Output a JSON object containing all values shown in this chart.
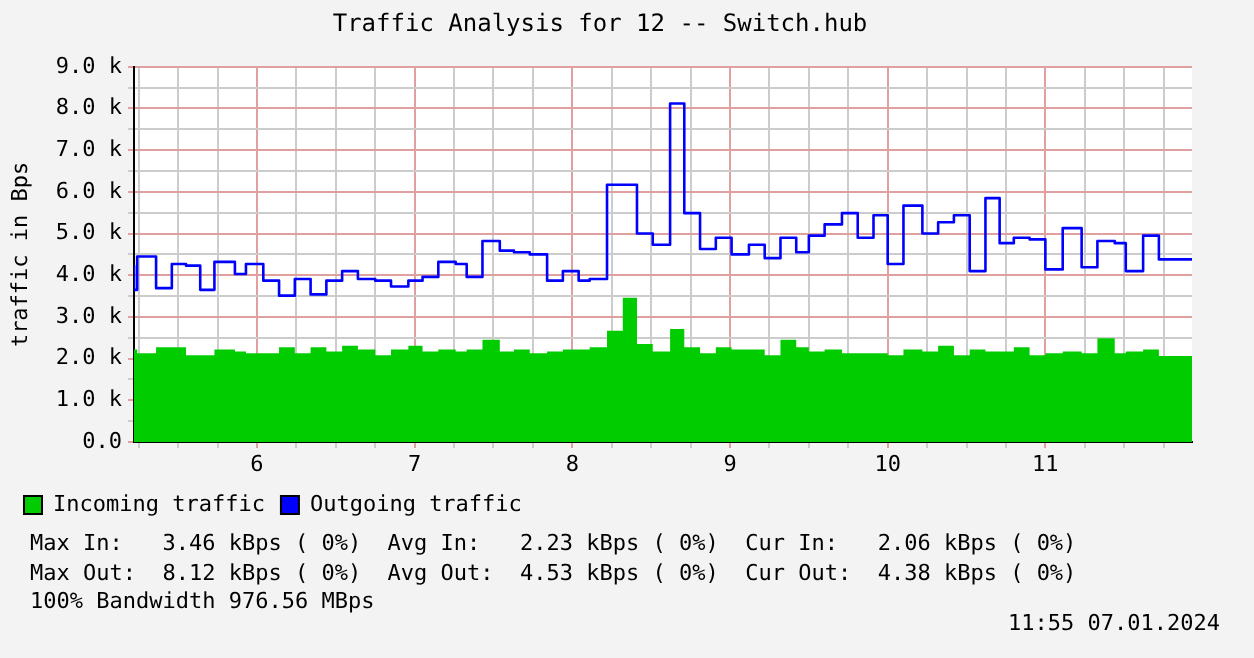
{
  "chart_data": {
    "type": "step",
    "title": "Traffic Analysis for 12 -- Switch.hub",
    "ylabel": "traffic in Bps",
    "xlim": [
      5.22,
      11.93
    ],
    "xticks": [
      {
        "value": 5.25,
        "label": null
      },
      {
        "value": 5.5,
        "label": null
      },
      {
        "value": 5.75,
        "label": null
      },
      6,
      {
        "value": 6.25,
        "label": null
      },
      {
        "value": 6.5,
        "label": null
      },
      {
        "value": 6.75,
        "label": null
      },
      7,
      {
        "value": 7.25,
        "label": null
      },
      {
        "value": 7.5,
        "label": null
      },
      {
        "value": 7.75,
        "label": null
      },
      8,
      {
        "value": 8.25,
        "label": null
      },
      {
        "value": 8.5,
        "label": null
      },
      {
        "value": 8.75,
        "label": null
      },
      9,
      {
        "value": 9.25,
        "label": null
      },
      {
        "value": 9.5,
        "label": null
      },
      {
        "value": 9.75,
        "label": null
      },
      10,
      {
        "value": 10.25,
        "label": null
      },
      {
        "value": 10.5,
        "label": null
      },
      {
        "value": 10.75,
        "label": null
      },
      11,
      {
        "value": 11.25,
        "label": null
      },
      {
        "value": 11.5,
        "label": null
      },
      {
        "value": 11.75,
        "label": null
      }
    ],
    "ylim": [
      0,
      9000
    ],
    "yticks": [
      {
        "value": 0,
        "label": "0.0"
      },
      {
        "value": 500,
        "label": null
      },
      {
        "value": 1000,
        "label": "1.0 k"
      },
      {
        "value": 1500,
        "label": null
      },
      {
        "value": 2000,
        "label": "2.0 k"
      },
      {
        "value": 2500,
        "label": null
      },
      {
        "value": 3000,
        "label": "3.0 k"
      },
      {
        "value": 3500,
        "label": null
      },
      {
        "value": 4000,
        "label": "4.0 k"
      },
      {
        "value": 4500,
        "label": null
      },
      {
        "value": 5000,
        "label": "5.0 k"
      },
      {
        "value": 5500,
        "label": null
      },
      {
        "value": 6000,
        "label": "6.0 k"
      },
      {
        "value": 6500,
        "label": null
      },
      {
        "value": 7000,
        "label": "7.0 k"
      },
      {
        "value": 7500,
        "label": null
      },
      {
        "value": 8000,
        "label": "8.0 k"
      },
      {
        "value": 8500,
        "label": null
      },
      {
        "value": 9000,
        "label": "9.0 k"
      }
    ],
    "grid": true,
    "legend": "bottom left",
    "marker": "none",
    "series": [
      {
        "name": "Incoming traffic",
        "type": "area",
        "color": "#00cc00",
        "x": [
          5.22,
          5.24,
          5.36,
          5.55,
          5.73,
          5.86,
          5.93,
          6.14,
          6.24,
          6.34,
          6.44,
          6.54,
          6.64,
          6.75,
          6.85,
          6.96,
          7.05,
          7.15,
          7.26,
          7.33,
          7.43,
          7.54,
          7.63,
          7.73,
          7.84,
          7.94,
          8.11,
          8.22,
          8.32,
          8.41,
          8.51,
          8.62,
          8.71,
          8.81,
          8.91,
          9.01,
          9.22,
          9.32,
          9.42,
          9.5,
          9.6,
          9.71,
          10.0,
          10.1,
          10.22,
          10.32,
          10.42,
          10.52,
          10.62,
          10.8,
          10.9,
          11.0,
          11.11,
          11.23,
          11.33,
          11.44,
          11.51,
          11.62,
          11.72,
          11.82,
          11.93
        ],
        "values": [
          2130,
          2220,
          2130,
          2270,
          2080,
          2220,
          2170,
          2130,
          2270,
          2130,
          2270,
          2170,
          2310,
          2220,
          2080,
          2220,
          2310,
          2170,
          2220,
          2170,
          2220,
          2450,
          2170,
          2220,
          2130,
          2170,
          2220,
          2270,
          2670,
          3460,
          2350,
          2170,
          2710,
          2270,
          2130,
          2270,
          2220,
          2080,
          2450,
          2270,
          2170,
          2220,
          2130,
          2080,
          2220,
          2170,
          2310,
          2080,
          2220,
          2170,
          2270,
          2080,
          2130,
          2170,
          2130,
          2490,
          2130,
          2170,
          2220,
          2060,
          2060
        ]
      },
      {
        "name": "Outgoing traffic",
        "color": "#0000ff",
        "x": [
          5.22,
          5.24,
          5.36,
          5.46,
          5.55,
          5.64,
          5.73,
          5.86,
          5.93,
          6.04,
          6.14,
          6.24,
          6.34,
          6.44,
          6.54,
          6.64,
          6.75,
          6.85,
          6.96,
          7.05,
          7.15,
          7.26,
          7.33,
          7.43,
          7.54,
          7.63,
          7.73,
          7.84,
          7.94,
          8.04,
          8.11,
          8.22,
          8.41,
          8.51,
          8.62,
          8.71,
          8.81,
          8.91,
          9.01,
          9.12,
          9.22,
          9.32,
          9.42,
          9.5,
          9.6,
          9.71,
          9.81,
          9.91,
          10.0,
          10.1,
          10.22,
          10.32,
          10.42,
          10.52,
          10.62,
          10.71,
          10.8,
          10.9,
          11.0,
          11.11,
          11.23,
          11.33,
          11.44,
          11.51,
          11.62,
          11.72,
          11.82,
          11.93
        ],
        "values": [
          4240,
          3650,
          4450,
          3690,
          4270,
          4230,
          3650,
          4320,
          4030,
          4270,
          3870,
          3510,
          3910,
          3540,
          3870,
          4100,
          3910,
          3870,
          3730,
          3870,
          3960,
          4320,
          4270,
          3960,
          4820,
          4590,
          4550,
          4500,
          3870,
          4100,
          3870,
          3910,
          6170,
          5000,
          4730,
          8120,
          5490,
          4630,
          4900,
          4500,
          4730,
          4410,
          4900,
          4550,
          4950,
          5220,
          5490,
          4900,
          5440,
          4270,
          5670,
          5000,
          5270,
          5440,
          4100,
          5850,
          4770,
          4900,
          4860,
          4140,
          5130,
          4190,
          4820,
          4770,
          4100,
          4950,
          4380,
          4380
        ]
      }
    ],
    "annotations": [
      "Max In:   3.46 kBps ( 0%)  Avg In:   2.23 kBps ( 0%)  Cur In:   2.06 kBps ( 0%)",
      "Max Out:  8.12 kBps ( 0%)  Avg Out:  4.53 kBps ( 0%)  Cur Out:  4.38 kBps ( 0%)",
      "100% Bandwidth 976.56 MBps",
      "11:55 07.01.2024"
    ]
  }
}
